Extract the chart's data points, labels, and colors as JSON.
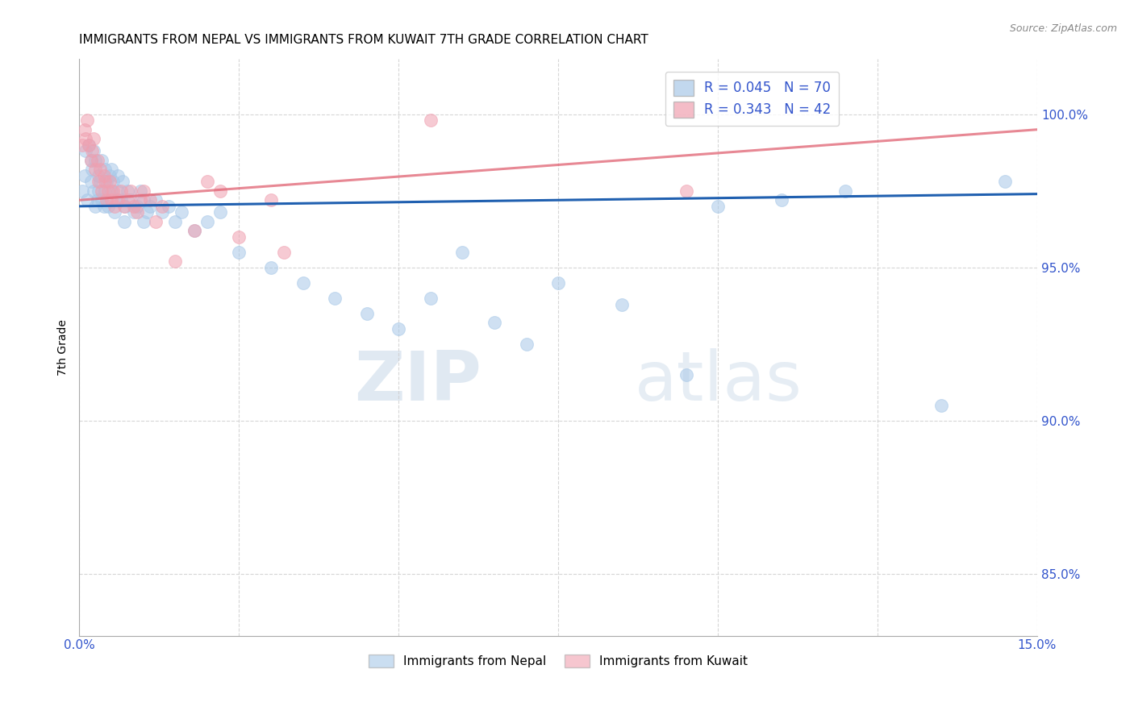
{
  "title": "IMMIGRANTS FROM NEPAL VS IMMIGRANTS FROM KUWAIT 7TH GRADE CORRELATION CHART",
  "source": "Source: ZipAtlas.com",
  "ylabel": "7th Grade",
  "yticks": [
    85.0,
    90.0,
    95.0,
    100.0
  ],
  "ytick_labels": [
    "85.0%",
    "90.0%",
    "95.0%",
    "100.0%"
  ],
  "xmin": 0.0,
  "xmax": 15.0,
  "ymin": 83.0,
  "ymax": 101.8,
  "nepal_color": "#a8c8e8",
  "kuwait_color": "#f0a0b0",
  "nepal_R": 0.045,
  "nepal_N": 70,
  "kuwait_R": 0.343,
  "kuwait_N": 42,
  "nepal_scatter_x": [
    0.05,
    0.08,
    0.1,
    0.12,
    0.15,
    0.18,
    0.18,
    0.2,
    0.22,
    0.22,
    0.25,
    0.25,
    0.28,
    0.3,
    0.3,
    0.32,
    0.35,
    0.35,
    0.38,
    0.4,
    0.4,
    0.42,
    0.45,
    0.48,
    0.5,
    0.5,
    0.52,
    0.55,
    0.58,
    0.6,
    0.6,
    0.65,
    0.68,
    0.7,
    0.72,
    0.75,
    0.8,
    0.85,
    0.9,
    0.95,
    1.0,
    1.0,
    1.05,
    1.1,
    1.2,
    1.3,
    1.4,
    1.5,
    1.6,
    1.8,
    2.0,
    2.2,
    2.5,
    3.0,
    3.5,
    4.0,
    4.5,
    5.0,
    5.5,
    6.0,
    6.5,
    7.0,
    7.5,
    8.5,
    9.5,
    10.0,
    11.0,
    12.0,
    13.5,
    14.5
  ],
  "nepal_scatter_y": [
    97.5,
    98.0,
    98.8,
    97.2,
    99.0,
    98.5,
    97.8,
    98.2,
    97.5,
    98.8,
    97.0,
    98.5,
    97.2,
    98.0,
    97.5,
    97.8,
    97.2,
    98.5,
    97.0,
    97.5,
    98.2,
    97.8,
    97.0,
    98.0,
    97.5,
    98.2,
    97.8,
    96.8,
    97.2,
    97.5,
    98.0,
    97.2,
    97.8,
    96.5,
    97.0,
    97.5,
    97.2,
    96.8,
    97.0,
    97.5,
    96.5,
    97.2,
    96.8,
    97.0,
    97.2,
    96.8,
    97.0,
    96.5,
    96.8,
    96.2,
    96.5,
    96.8,
    95.5,
    95.0,
    94.5,
    94.0,
    93.5,
    93.0,
    94.0,
    95.5,
    93.2,
    92.5,
    94.5,
    93.8,
    91.5,
    97.0,
    97.2,
    97.5,
    90.5,
    97.8
  ],
  "kuwait_scatter_x": [
    0.05,
    0.08,
    0.1,
    0.12,
    0.15,
    0.18,
    0.2,
    0.22,
    0.25,
    0.28,
    0.3,
    0.32,
    0.35,
    0.38,
    0.4,
    0.42,
    0.45,
    0.48,
    0.5,
    0.52,
    0.55,
    0.6,
    0.65,
    0.7,
    0.75,
    0.8,
    0.85,
    0.9,
    0.95,
    1.0,
    1.1,
    1.2,
    1.3,
    1.5,
    1.8,
    2.0,
    2.2,
    2.5,
    3.0,
    3.2,
    5.5,
    9.5
  ],
  "kuwait_scatter_y": [
    99.0,
    99.5,
    99.2,
    99.8,
    99.0,
    98.5,
    98.8,
    99.2,
    98.2,
    98.5,
    97.8,
    98.2,
    97.5,
    98.0,
    97.8,
    97.2,
    97.5,
    97.8,
    97.2,
    97.5,
    97.0,
    97.2,
    97.5,
    97.0,
    97.2,
    97.5,
    97.0,
    96.8,
    97.2,
    97.5,
    97.2,
    96.5,
    97.0,
    95.2,
    96.2,
    97.8,
    97.5,
    96.0,
    97.2,
    95.5,
    99.8,
    97.5
  ],
  "nepal_trendline_x": [
    0.0,
    15.0
  ],
  "nepal_trendline_y": [
    97.0,
    97.4
  ],
  "kuwait_trendline_x": [
    0.0,
    15.0
  ],
  "kuwait_trendline_y": [
    97.2,
    99.5
  ],
  "legend_label_nepal": "Immigrants from Nepal",
  "legend_label_kuwait": "Immigrants from Kuwait",
  "nepal_line_color": "#2060b0",
  "kuwait_line_color": "#e06070",
  "watermark_zip": "ZIP",
  "watermark_atlas": "atlas",
  "title_fontsize": 11,
  "axis_label_color": "#3355cc",
  "tick_color": "#3355cc"
}
